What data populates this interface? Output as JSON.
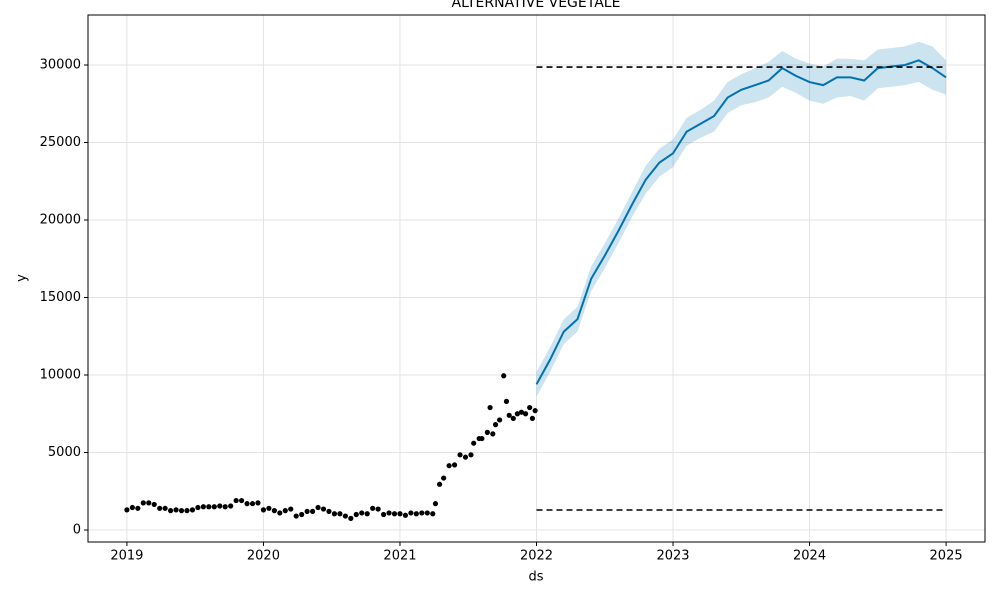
{
  "chart_data": {
    "type": "forecast",
    "title": "ALTERNATIVE VEGETALE",
    "x_label": "ds",
    "y_label": "y",
    "xlim": [
      2018.715,
      2025.285
    ],
    "ylim": [
      -774,
      33226
    ],
    "xticks": [
      2019,
      2020,
      2021,
      2022,
      2023,
      2024,
      2025
    ],
    "yticks": [
      0,
      5000,
      10000,
      15000,
      20000,
      25000,
      30000
    ],
    "grid": true,
    "observed": {
      "color": "#000000",
      "x": [
        2019.0,
        2019.04,
        2019.08,
        2019.12,
        2019.16,
        2019.2,
        2019.24,
        2019.28,
        2019.32,
        2019.36,
        2019.4,
        2019.44,
        2019.48,
        2019.52,
        2019.56,
        2019.6,
        2019.64,
        2019.68,
        2019.72,
        2019.76,
        2019.8,
        2019.84,
        2019.88,
        2019.92,
        2019.96,
        2020.0,
        2020.04,
        2020.08,
        2020.12,
        2020.16,
        2020.2,
        2020.24,
        2020.28,
        2020.32,
        2020.36,
        2020.4,
        2020.44,
        2020.48,
        2020.52,
        2020.56,
        2020.6,
        2020.64,
        2020.68,
        2020.72,
        2020.76,
        2020.8,
        2020.84,
        2020.88,
        2020.92,
        2020.96,
        2021.0,
        2021.04,
        2021.08,
        2021.12,
        2021.16,
        2021.2,
        2021.24,
        2021.26,
        2021.29,
        2021.32,
        2021.36,
        2021.4,
        2021.44,
        2021.48,
        2021.52,
        2021.54,
        2021.58,
        2021.6,
        2021.64,
        2021.66,
        2021.68,
        2021.7,
        2021.73,
        2021.76,
        2021.78,
        2021.8,
        2021.83,
        2021.86,
        2021.89,
        2021.92,
        2021.95,
        2021.97,
        2021.99
      ],
      "values": [
        1300,
        1450,
        1400,
        1750,
        1750,
        1650,
        1400,
        1400,
        1250,
        1300,
        1250,
        1250,
        1300,
        1450,
        1500,
        1500,
        1500,
        1550,
        1500,
        1550,
        1900,
        1900,
        1700,
        1700,
        1750,
        1300,
        1400,
        1250,
        1100,
        1250,
        1350,
        900,
        1000,
        1200,
        1200,
        1450,
        1350,
        1200,
        1050,
        1050,
        900,
        750,
        1000,
        1100,
        1050,
        1400,
        1350,
        1000,
        1100,
        1050,
        1050,
        950,
        1100,
        1050,
        1100,
        1100,
        1050,
        1700,
        2950,
        3350,
        4150,
        4200,
        4850,
        4700,
        4850,
        5600,
        5900,
        5900,
        6300,
        7900,
        6200,
        6800,
        7100,
        9950,
        8300,
        7400,
        7200,
        7500,
        7600,
        7500,
        7900,
        7200,
        7700
      ]
    },
    "forecast": {
      "color": "#0072B2",
      "x": [
        2022.0,
        2022.1,
        2022.2,
        2022.3,
        2022.4,
        2022.5,
        2022.6,
        2022.7,
        2022.8,
        2022.9,
        2023.0,
        2023.1,
        2023.2,
        2023.3,
        2023.4,
        2023.5,
        2023.6,
        2023.7,
        2023.8,
        2023.9,
        2024.0,
        2024.1,
        2024.2,
        2024.3,
        2024.4,
        2024.5,
        2024.6,
        2024.7,
        2024.8,
        2024.9,
        2025.0
      ],
      "values": [
        9400,
        11000,
        12800,
        13600,
        16200,
        17700,
        19300,
        21000,
        22600,
        23700,
        24300,
        25700,
        26200,
        26700,
        27900,
        28400,
        28700,
        29000,
        29800,
        29300,
        28900,
        28700,
        29200,
        29200,
        29000,
        29800,
        29900,
        30000,
        30300,
        29800,
        29200
      ],
      "lower": [
        8600,
        10200,
        12000,
        12800,
        15400,
        16900,
        18500,
        20200,
        21700,
        22800,
        23400,
        24800,
        25300,
        25700,
        26900,
        27400,
        27600,
        27900,
        28600,
        28200,
        27700,
        27500,
        27900,
        28000,
        27700,
        28500,
        28600,
        28700,
        28900,
        28400,
        28100
      ],
      "upper": [
        10200,
        11800,
        13600,
        14400,
        17000,
        18500,
        20100,
        21800,
        23500,
        24600,
        25200,
        26600,
        27100,
        27700,
        28900,
        29400,
        29800,
        30200,
        30900,
        30400,
        30100,
        29900,
        30400,
        30400,
        30300,
        31000,
        31100,
        31200,
        31500,
        31200,
        30300
      ]
    },
    "cap": {
      "color": "#000000",
      "x": [
        2022.0,
        2024.99
      ],
      "values": [
        29870,
        29870
      ]
    },
    "floor": {
      "color": "#000000",
      "x": [
        2022.0,
        2024.99
      ],
      "values": [
        1290,
        1290
      ]
    }
  }
}
